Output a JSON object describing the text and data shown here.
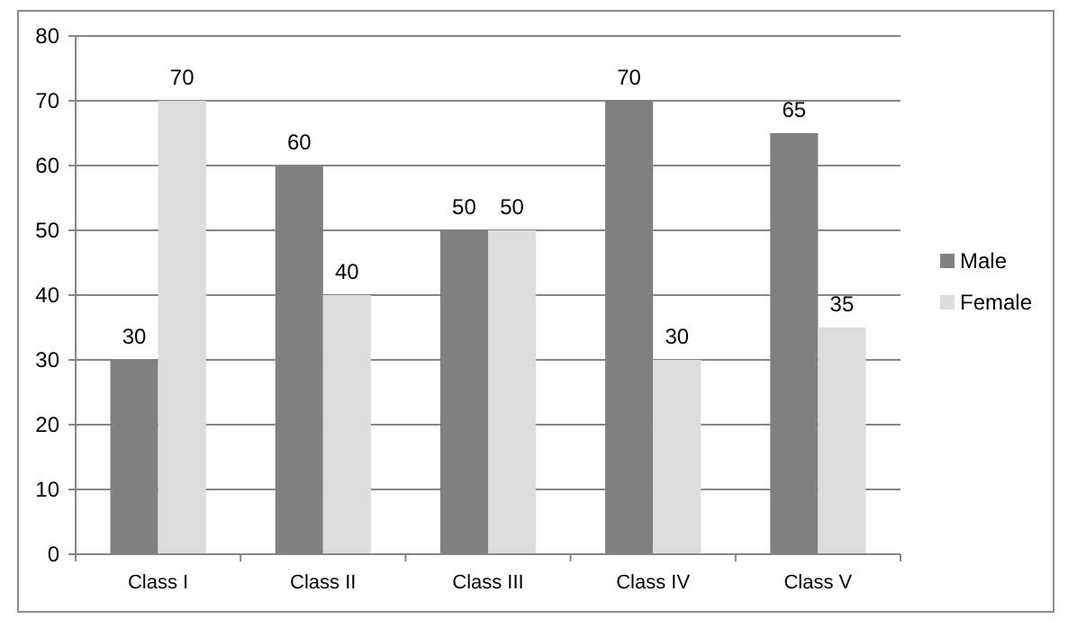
{
  "chart_data": {
    "type": "bar",
    "categories": [
      "Class I",
      "Class II",
      "Class III",
      "Class IV",
      "Class V"
    ],
    "series": [
      {
        "name": "Male",
        "color": "#808080",
        "values": [
          30,
          60,
          50,
          70,
          65
        ]
      },
      {
        "name": "Female",
        "color": "#dcdcdc",
        "values": [
          70,
          40,
          50,
          30,
          35
        ]
      }
    ],
    "ylim": [
      0,
      80
    ],
    "yticks": [
      0,
      10,
      20,
      30,
      40,
      50,
      60,
      70,
      80
    ],
    "grid": "y",
    "legend": "right",
    "data_labels": true
  }
}
